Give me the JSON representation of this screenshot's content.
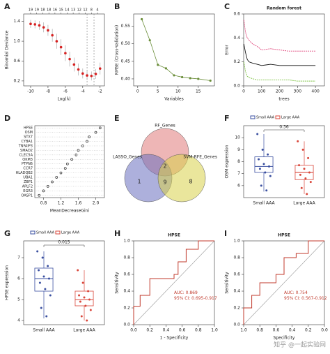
{
  "chart_data": [
    {
      "type": "lasso",
      "panel": "A",
      "xlabel": "Log(λ)",
      "ylabel": "Binomial Deviance",
      "x": [
        -10,
        -9.5,
        -9,
        -8.5,
        -8,
        -7.5,
        -7,
        -6.5,
        -6,
        -5.5,
        -5,
        -4.5,
        -4,
        -3.5,
        -3,
        -2.5,
        -2
      ],
      "values": [
        1.35,
        1.34,
        1.32,
        1.28,
        1.22,
        1.12,
        1.0,
        0.88,
        0.76,
        0.64,
        0.53,
        0.43,
        0.35,
        0.31,
        0.3,
        0.34,
        0.45
      ],
      "errors": [
        0.08,
        0.08,
        0.09,
        0.1,
        0.11,
        0.13,
        0.15,
        0.16,
        0.16,
        0.15,
        0.14,
        0.12,
        0.1,
        0.09,
        0.09,
        0.1,
        0.12
      ],
      "color": "#d62020",
      "vlines": [
        -3.5,
        -2.7
      ],
      "top_ticks": [
        {
          "value": -10,
          "label": "19"
        },
        {
          "value": -9.3,
          "label": "19"
        },
        {
          "value": -8.6,
          "label": "18"
        },
        {
          "value": -7.9,
          "label": "18"
        },
        {
          "value": -7.2,
          "label": "16"
        },
        {
          "value": -6.5,
          "label": "15"
        },
        {
          "value": -5.8,
          "label": "14"
        },
        {
          "value": -5.1,
          "label": "13"
        },
        {
          "value": -4.4,
          "label": "12"
        },
        {
          "value": -3.7,
          "label": "12"
        },
        {
          "value": -3,
          "label": "8"
        },
        {
          "value": -2.3,
          "label": "4"
        }
      ],
      "xlim": [
        -10.8,
        -1.5
      ],
      "xticks": [
        -10,
        -8,
        -6,
        -4,
        -2
      ],
      "ylim": [
        0.1,
        1.55
      ],
      "yticks": [
        0.2,
        0.6,
        {
          "value": 1,
          "label": "1.0"
        },
        1.4
      ]
    },
    {
      "type": "line",
      "panel": "B",
      "xlabel": "Variables",
      "ylabel": "RMSE (Cross-Validation)",
      "color": "#6b8e3a",
      "x": [
        1,
        3,
        5,
        7,
        9,
        11,
        13,
        15,
        18
      ],
      "values": [
        0.57,
        0.51,
        0.44,
        0.43,
        0.41,
        0.405,
        0.402,
        0.4,
        0.395
      ],
      "xlim": [
        -1,
        19
      ],
      "xticks": [
        0,
        5,
        10,
        15
      ],
      "ylim": [
        0.38,
        0.585
      ],
      "yticks": [
        {
          "value": 0.4,
          "label": "0.40"
        },
        0.45,
        {
          "value": 0.5,
          "label": "0.50"
        },
        0.55
      ]
    },
    {
      "type": "multiline",
      "panel": "C",
      "title": "Random forest",
      "xlabel": "trees",
      "ylabel": "Error",
      "x": [
        1,
        10,
        20,
        30,
        50,
        75,
        100,
        150,
        200,
        250,
        300,
        350,
        400
      ],
      "series": [
        {
          "color": "#e0457b",
          "values": [
            0.55,
            0.45,
            0.4,
            0.38,
            0.35,
            0.33,
            0.3,
            0.31,
            0.3,
            0.29,
            0.29,
            0.29,
            0.29
          ]
        },
        {
          "color": "#111111",
          "values": [
            0.35,
            0.28,
            0.22,
            0.2,
            0.19,
            0.18,
            0.17,
            0.18,
            0.17,
            0.17,
            0.17,
            0.17,
            0.17
          ]
        },
        {
          "color": "#7dc242",
          "values": [
            0.2,
            0.12,
            0.08,
            0.07,
            0.06,
            0.05,
            0.05,
            0.05,
            0.05,
            0.05,
            0.04,
            0.04,
            0.04
          ]
        }
      ],
      "xlim": [
        0,
        450
      ],
      "xticks": [
        0,
        100,
        200,
        300,
        400
      ],
      "ylim": [
        0,
        0.6
      ],
      "yticks": [
        {
          "value": 0,
          "label": "0.0"
        },
        0.2,
        0.4,
        0.6
      ]
    },
    {
      "type": "dot",
      "panel": "D",
      "xlabel": "MeanDecreaseGini",
      "categories": [
        "HPSE",
        "OSM",
        "STX7",
        "CYBA1",
        "TNFAIP3",
        "SMAD2",
        "CLEC5A",
        "OKM3",
        "PTPN6",
        "CCR7",
        "HLADQB2",
        "UBA1",
        "ZBP1",
        "APLF2",
        "EGR3",
        "OASP1"
      ],
      "values": [
        2.1,
        2.0,
        1.85,
        1.8,
        1.7,
        1.6,
        1.55,
        1.45,
        1.35,
        1.3,
        1.2,
        1.1,
        1.0,
        0.9,
        0.8,
        0.7
      ],
      "xlim": [
        0.6,
        2.2
      ],
      "xticks": [
        0.8,
        1.2,
        1.6,
        {
          "value": 2,
          "label": "2.0"
        }
      ]
    },
    {
      "type": "venn",
      "panel": "E",
      "sets": [
        {
          "name": "RF_Genes",
          "color": "#e07a7a"
        },
        {
          "name": "LASSO_Genes",
          "color": "#6a6fc0"
        },
        {
          "name": "SVM-RFE_Genes",
          "color": "#d9d24a"
        }
      ],
      "values": [
        2,
        1,
        9,
        8
      ]
    },
    {
      "type": "box",
      "panel": "F",
      "ylabel": "OSM expression",
      "annotation": "0.36",
      "categories": [
        "Small AAA",
        "Large AAA"
      ],
      "series": [
        {
          "name": "Small AAA",
          "color": "#3a4fa0",
          "stats": {
            "min": 5.5,
            "q1": 7.1,
            "median": 7.6,
            "q3": 8.4,
            "max": 10.3
          },
          "points": [
            10.3,
            9.0,
            8.6,
            8.2,
            7.8,
            7.6,
            7.4,
            7.1,
            6.8,
            6.0,
            5.6
          ]
        },
        {
          "name": "Large AAA",
          "color": "#d9473b",
          "stats": {
            "min": 5.3,
            "q1": 6.5,
            "median": 7.1,
            "q3": 7.7,
            "max": 9.7
          },
          "points": [
            9.7,
            9.0,
            8.3,
            7.7,
            7.4,
            7.1,
            6.9,
            6.6,
            6.3,
            5.8,
            5.3
          ]
        }
      ],
      "ylim": [
        5,
        11
      ],
      "yticks": [
        6,
        7,
        8,
        9,
        10
      ]
    },
    {
      "type": "box",
      "panel": "G",
      "ylabel": "HPSE expression",
      "annotation": "0.015",
      "categories": [
        "Small AAA",
        "Large AAA"
      ],
      "series": [
        {
          "name": "Small AAA",
          "color": "#3a4fa0",
          "stats": {
            "min": 4.1,
            "q1": 5.4,
            "median": 6.0,
            "q3": 6.5,
            "max": 7.3
          },
          "points": [
            7.3,
            7.0,
            6.6,
            6.4,
            6.1,
            6.0,
            5.8,
            5.5,
            5.2,
            4.6,
            4.2
          ]
        },
        {
          "name": "Large AAA",
          "color": "#d9473b",
          "stats": {
            "min": 4.0,
            "q1": 4.7,
            "median": 5.0,
            "q3": 5.4,
            "max": 6.4
          },
          "points": [
            6.4,
            5.8,
            5.4,
            5.2,
            5.1,
            5.0,
            4.9,
            4.7,
            4.5,
            4.2,
            4.0
          ]
        }
      ],
      "ylim": [
        3.8,
        7.8
      ],
      "yticks": [
        4,
        5,
        6,
        7
      ]
    },
    {
      "type": "roc",
      "panel": "H",
      "title": "HPSE",
      "xlabel": "1 - Specificity",
      "ylabel": "Sensitivity",
      "color": "#c0392b",
      "annotations": [
        "AUC: 0.869",
        "95% CI: 0.695-0.917"
      ],
      "x": [
        0,
        0,
        0.08,
        0.08,
        0.2,
        0.2,
        0.5,
        0.5,
        0.55,
        0.55,
        0.65,
        0.65,
        0.8,
        0.8,
        1
      ],
      "values": [
        0,
        0.22,
        0.22,
        0.35,
        0.35,
        0.55,
        0.55,
        0.6,
        0.6,
        0.75,
        0.75,
        0.9,
        0.9,
        1,
        1
      ],
      "xlim": [
        0,
        1
      ],
      "xticks": [
        {
          "value": 0,
          "label": "0.0"
        },
        0.2,
        0.4,
        0.6,
        0.8,
        {
          "value": 1,
          "label": "1.0"
        }
      ],
      "ylim": [
        0,
        1
      ],
      "yticks": [
        {
          "value": 0,
          "label": "0.0"
        },
        0.2,
        0.4,
        0.6,
        0.8,
        {
          "value": 1,
          "label": "1.0"
        }
      ]
    },
    {
      "type": "roc",
      "panel": "I",
      "title": "HPSE",
      "xlabel": "Specificity",
      "ylabel": "Sensitivity",
      "color": "#c0392b",
      "annotations": [
        "AUC: 0.754",
        "95% CI: 0.567-0.912"
      ],
      "x": [
        1,
        1,
        0.9,
        0.9,
        0.8,
        0.8,
        0.6,
        0.6,
        0.5,
        0.5,
        0.35,
        0.35,
        0.2,
        0.2,
        0
      ],
      "values": [
        0,
        0.2,
        0.2,
        0.35,
        0.35,
        0.5,
        0.5,
        0.6,
        0.6,
        0.8,
        0.8,
        0.85,
        0.85,
        1,
        1
      ],
      "xlim": [
        1,
        0
      ],
      "xticks": [
        {
          "value": 1,
          "label": "1.0"
        },
        0.8,
        0.6,
        0.4,
        0.2,
        {
          "value": 0,
          "label": "0.0"
        }
      ],
      "ylim": [
        0,
        1
      ],
      "yticks": [
        {
          "value": 0,
          "label": "0.0"
        },
        0.2,
        0.4,
        0.6,
        0.8,
        {
          "value": 1,
          "label": "1.0"
        }
      ]
    }
  ],
  "watermark": "知乎 @一起实验网"
}
